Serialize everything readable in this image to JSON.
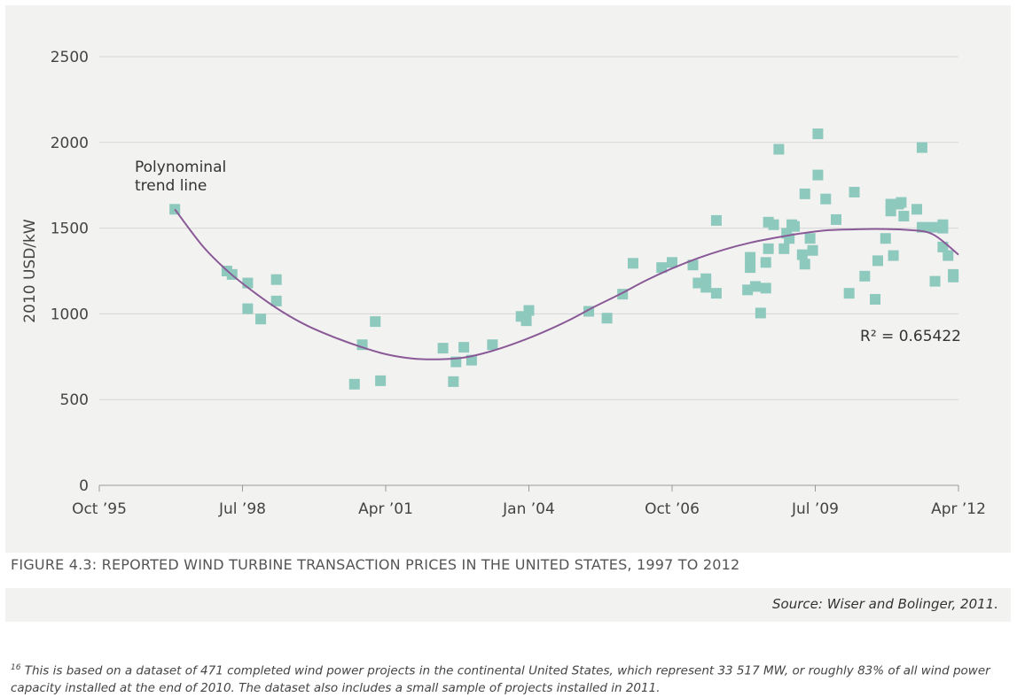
{
  "chart_data": {
    "type": "scatter",
    "ylabel": "2010 USD/kW",
    "ylim": [
      0,
      2500
    ],
    "yticks": [
      0,
      500,
      1000,
      1500,
      2000,
      2500
    ],
    "xlim": [
      1995.75,
      2012.25
    ],
    "xticks": [
      {
        "value": 1995.75,
        "label": "Oct ’95"
      },
      {
        "value": 1998.5,
        "label": "Jul ’98"
      },
      {
        "value": 2001.25,
        "label": "Apr ’01"
      },
      {
        "value": 2004.0,
        "label": "Jan ’04"
      },
      {
        "value": 2006.75,
        "label": "Oct ’06"
      },
      {
        "value": 2009.5,
        "label": "Jul ’09"
      },
      {
        "value": 2012.25,
        "label": "Apr ’12"
      }
    ],
    "grid": true,
    "series": [
      {
        "points": [
          [
            1997.2,
            1610
          ],
          [
            1998.2,
            1250
          ],
          [
            1998.3,
            1230
          ],
          [
            1998.6,
            1180
          ],
          [
            1998.6,
            1030
          ],
          [
            1998.85,
            970
          ],
          [
            1999.15,
            1200
          ],
          [
            1999.15,
            1075
          ],
          [
            2000.65,
            590
          ],
          [
            2000.8,
            820
          ],
          [
            2001.05,
            955
          ],
          [
            2001.15,
            610
          ],
          [
            2002.35,
            800
          ],
          [
            2002.55,
            605
          ],
          [
            2002.6,
            720
          ],
          [
            2002.75,
            805
          ],
          [
            2002.9,
            730
          ],
          [
            2003.3,
            820
          ],
          [
            2003.85,
            985
          ],
          [
            2003.95,
            960
          ],
          [
            2004.0,
            1020
          ],
          [
            2005.15,
            1015
          ],
          [
            2005.5,
            975
          ],
          [
            2005.8,
            1115
          ],
          [
            2006.0,
            1295
          ],
          [
            2006.55,
            1270
          ],
          [
            2006.75,
            1300
          ],
          [
            2007.15,
            1285
          ],
          [
            2007.25,
            1180
          ],
          [
            2007.4,
            1205
          ],
          [
            2007.4,
            1155
          ],
          [
            2007.6,
            1545
          ],
          [
            2007.6,
            1120
          ],
          [
            2008.2,
            1140
          ],
          [
            2008.25,
            1330
          ],
          [
            2008.25,
            1270
          ],
          [
            2008.35,
            1160
          ],
          [
            2008.45,
            1005
          ],
          [
            2008.55,
            1300
          ],
          [
            2008.55,
            1150
          ],
          [
            2008.6,
            1535
          ],
          [
            2008.6,
            1380
          ],
          [
            2008.7,
            1520
          ],
          [
            2008.8,
            1960
          ],
          [
            2008.9,
            1380
          ],
          [
            2008.95,
            1470
          ],
          [
            2009.0,
            1440
          ],
          [
            2009.05,
            1520
          ],
          [
            2009.1,
            1510
          ],
          [
            2009.25,
            1345
          ],
          [
            2009.3,
            1700
          ],
          [
            2009.3,
            1290
          ],
          [
            2009.4,
            1440
          ],
          [
            2009.45,
            1370
          ],
          [
            2009.55,
            2050
          ],
          [
            2009.55,
            1810
          ],
          [
            2009.7,
            1670
          ],
          [
            2009.9,
            1550
          ],
          [
            2010.15,
            1120
          ],
          [
            2010.25,
            1710
          ],
          [
            2010.45,
            1220
          ],
          [
            2010.65,
            1085
          ],
          [
            2010.7,
            1310
          ],
          [
            2010.85,
            1440
          ],
          [
            2010.95,
            1640
          ],
          [
            2010.95,
            1600
          ],
          [
            2011.0,
            1340
          ],
          [
            2011.1,
            1640
          ],
          [
            2011.15,
            1650
          ],
          [
            2011.2,
            1570
          ],
          [
            2011.45,
            1610
          ],
          [
            2011.55,
            1970
          ],
          [
            2011.55,
            1505
          ],
          [
            2011.75,
            1505
          ],
          [
            2011.8,
            1190
          ],
          [
            2011.95,
            1520
          ],
          [
            2011.95,
            1390
          ],
          [
            2011.95,
            1500
          ],
          [
            2012.05,
            1340
          ],
          [
            2012.15,
            1230
          ],
          [
            2012.15,
            1215
          ]
        ]
      }
    ],
    "trend": {
      "annotation": "Polynominal\ntrend line",
      "r2_label": "R² = 0.65422",
      "curve": [
        [
          1997.2,
          1610
        ],
        [
          1997.75,
          1390
        ],
        [
          1998.25,
          1240
        ],
        [
          1998.75,
          1120
        ],
        [
          1999.25,
          1015
        ],
        [
          1999.75,
          930
        ],
        [
          2000.25,
          865
        ],
        [
          2000.75,
          810
        ],
        [
          2001.25,
          765
        ],
        [
          2001.75,
          740
        ],
        [
          2002.25,
          735
        ],
        [
          2002.75,
          745
        ],
        [
          2003.25,
          780
        ],
        [
          2003.75,
          830
        ],
        [
          2004.25,
          890
        ],
        [
          2004.75,
          960
        ],
        [
          2005.25,
          1040
        ],
        [
          2005.75,
          1115
        ],
        [
          2006.25,
          1195
        ],
        [
          2006.75,
          1265
        ],
        [
          2007.25,
          1325
        ],
        [
          2007.75,
          1375
        ],
        [
          2008.25,
          1415
        ],
        [
          2008.75,
          1445
        ],
        [
          2009.25,
          1470
        ],
        [
          2009.75,
          1488
        ],
        [
          2010.25,
          1493
        ],
        [
          2010.75,
          1495
        ],
        [
          2011.25,
          1490
        ],
        [
          2011.75,
          1465
        ],
        [
          2012.25,
          1345
        ]
      ]
    },
    "colors": {
      "point": "#8ec9bd",
      "trend": "#8a5a97",
      "grid": "#d6d6d6"
    }
  },
  "caption": "FIGURE 4.3: REPORTED WIND TURBINE TRANSACTION PRICES IN THE UNITED STATES, 1997 TO 2012",
  "source": "Source: Wiser and Bolinger, 2011.",
  "footnote": {
    "marker": "16",
    "text": "This is based on a dataset of 471 completed wind power projects in the continental United States, which represent 33 517 MW, or roughly 83% of all wind power capacity installed at the end of 2010. The dataset also includes a small sample of projects installed in 2011."
  }
}
